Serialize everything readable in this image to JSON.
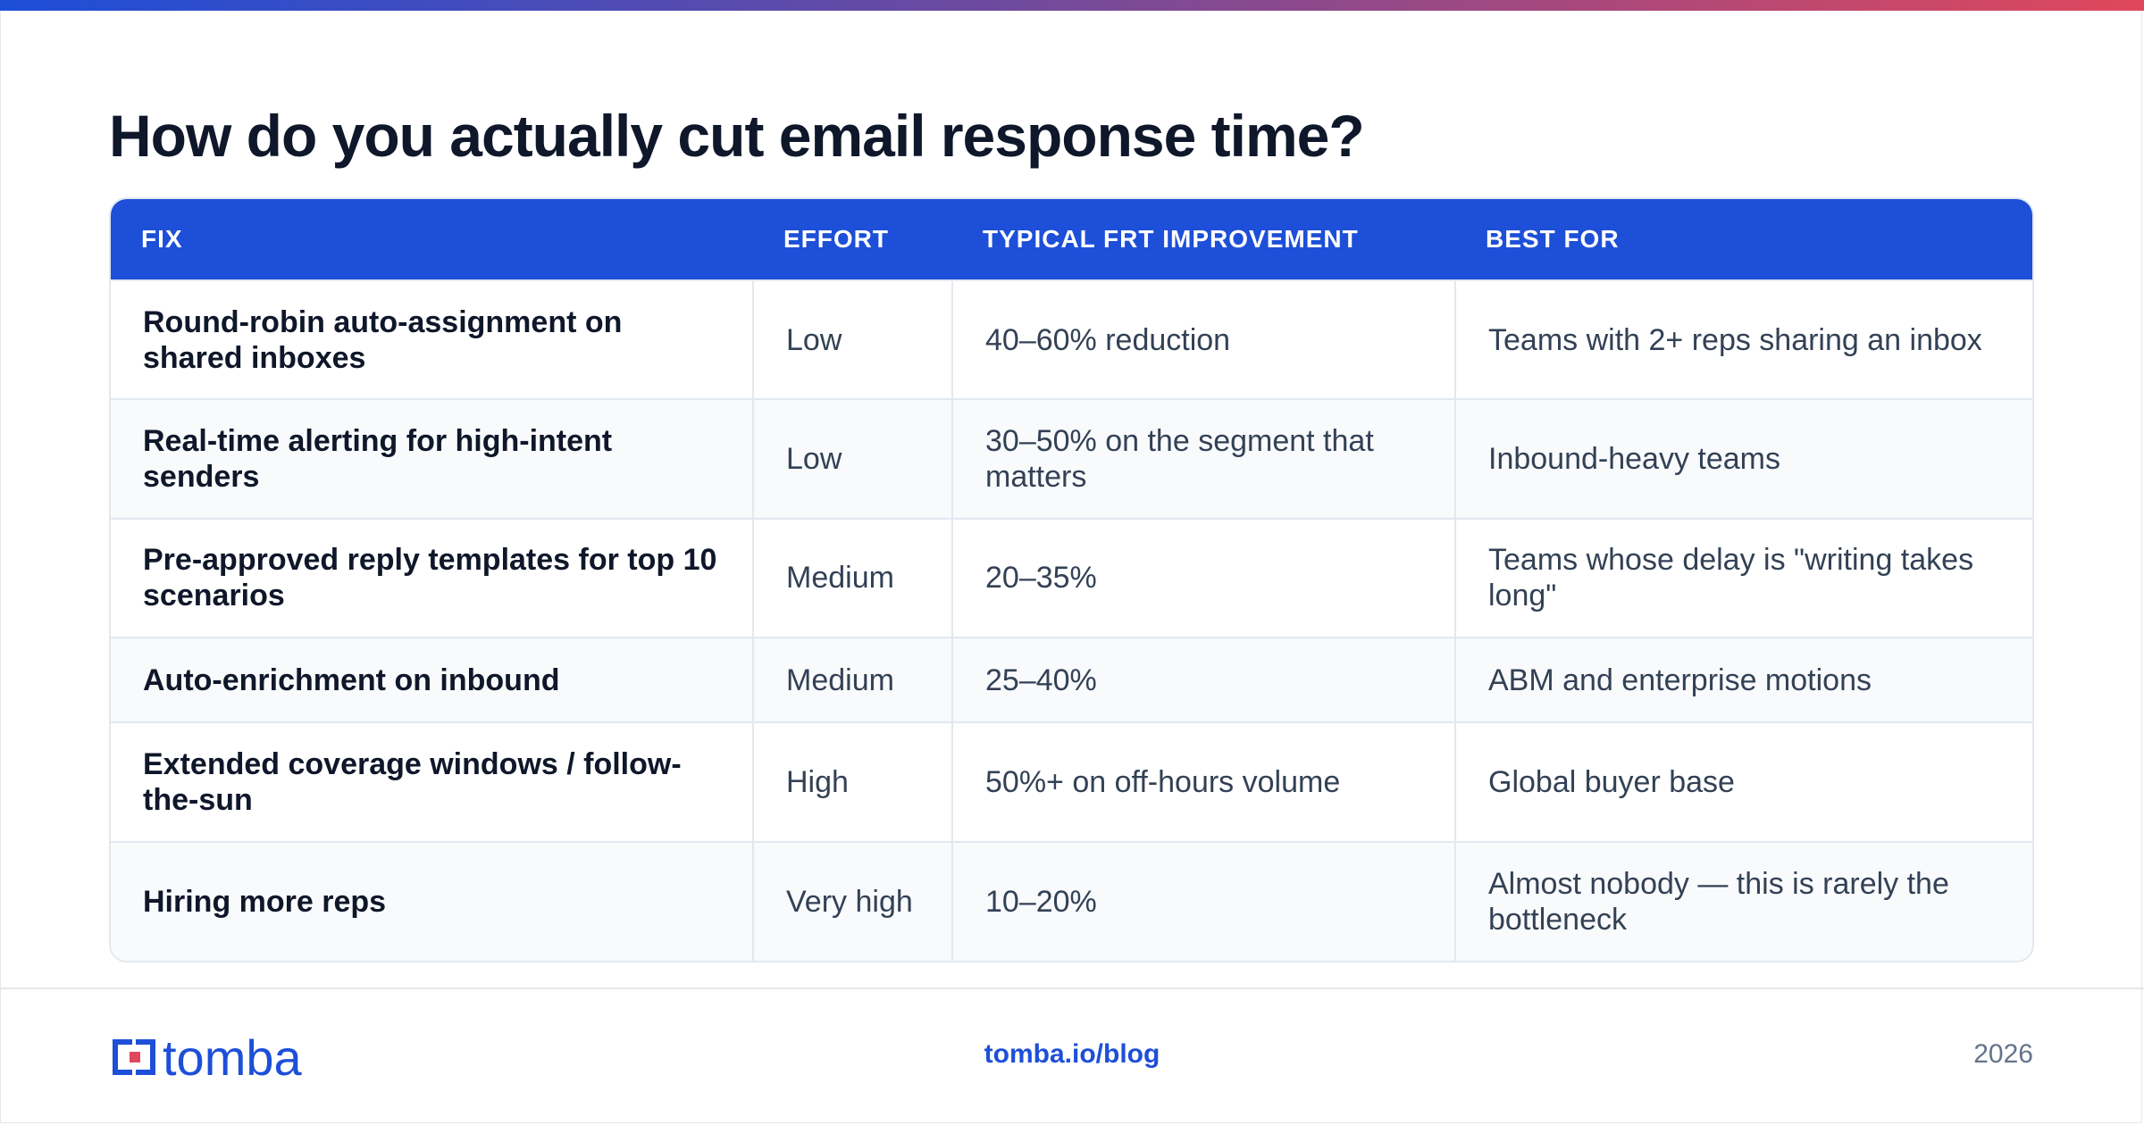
{
  "title": "How do you actually cut email response time?",
  "colors": {
    "accent": "#1d4fd8",
    "gradient_start": "#1d4ed8",
    "gradient_end": "#e0475c"
  },
  "table": {
    "headers": [
      "FIX",
      "EFFORT",
      "TYPICAL FRT IMPROVEMENT",
      "BEST FOR"
    ],
    "rows": [
      [
        "Round-robin auto-assignment on shared inboxes",
        "Low",
        "40–60% reduction",
        "Teams with 2+ reps sharing an inbox"
      ],
      [
        "Real-time alerting for high-intent senders",
        "Low",
        "30–50% on the segment that matters",
        "Inbound-heavy teams"
      ],
      [
        "Pre-approved reply templates for top 10 scenarios",
        "Medium",
        "20–35%",
        "Teams whose delay is \"writing takes long\""
      ],
      [
        "Auto-enrichment on inbound",
        "Medium",
        "25–40%",
        "ABM and enterprise motions"
      ],
      [
        "Extended coverage windows / follow-the-sun",
        "High",
        "50%+ on off-hours volume",
        "Global buyer base"
      ],
      [
        "Hiring more reps",
        "Very high",
        "10–20%",
        "Almost nobody — this is rarely the bottleneck"
      ]
    ]
  },
  "footer": {
    "logo_text": "tomba",
    "logo_icon": "tomba-logo-icon",
    "link": "tomba.io/blog",
    "year": "2026"
  }
}
